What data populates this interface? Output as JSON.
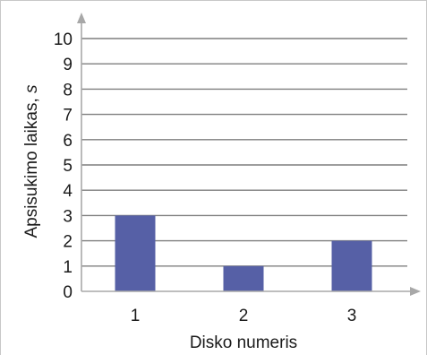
{
  "chart_data": {
    "type": "bar",
    "categories": [
      "1",
      "2",
      "3"
    ],
    "values": [
      3,
      1,
      2
    ],
    "title": "",
    "xlabel": "Disko numeris",
    "ylabel": "Apsisukimo laikas, ",
    "ylabel_unit": "s",
    "ylim": [
      0,
      10
    ],
    "yticks": [
      "0",
      "1",
      "2",
      "3",
      "4",
      "5",
      "6",
      "7",
      "8",
      "9",
      "10"
    ],
    "grid": true,
    "legend": "none",
    "colors": {
      "bar": "#5660a6",
      "grid": "#7f7f7f",
      "axis": "#a8a8a8",
      "text": "#1a1a1a"
    }
  }
}
